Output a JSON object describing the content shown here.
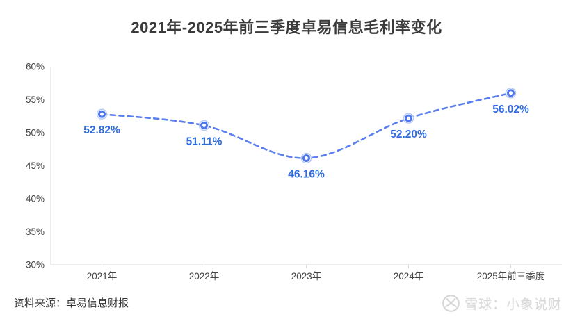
{
  "title": "2021年-2025年前三季度卓易信息毛利率变化",
  "source_note": "资料来源：卓易信息财报",
  "watermark": {
    "icon": "xueqiu-logo",
    "brand": "雪球：小象说财"
  },
  "colors": {
    "title_text": "#3b3b3b",
    "line_blue": "#5a7ef0",
    "marker_ring_blue": "#4d76ec",
    "marker_halo_blue": "#b3c6f8",
    "data_label_blue": "#2e6be0",
    "axis_gray": "#d9d9d9",
    "axis_label_gray": "#454545",
    "watermark_gray": "#d9d9d9",
    "background": "#ffffff"
  },
  "chart_data": {
    "type": "line",
    "title": "2021年-2025年前三季度卓易信息毛利率变化",
    "categories": [
      "2021年",
      "2022年",
      "2023年",
      "2024年",
      "2025年前三季度"
    ],
    "values": [
      52.82,
      51.11,
      46.16,
      52.2,
      56.02
    ],
    "point_labels": [
      "52.82%",
      "51.11%",
      "46.16%",
      "52.20%",
      "56.02%"
    ],
    "series_name": "毛利率",
    "xlabel": "",
    "ylabel": "",
    "ylim": [
      30,
      60
    ],
    "y_tick_step": 5,
    "y_tick_labels": [
      "30%",
      "35%",
      "40%",
      "45%",
      "50%",
      "55%",
      "60%"
    ],
    "line_style": "dashed",
    "smooth": true,
    "markers": "hollow-ring",
    "grid": "off",
    "legend_position": "none"
  }
}
